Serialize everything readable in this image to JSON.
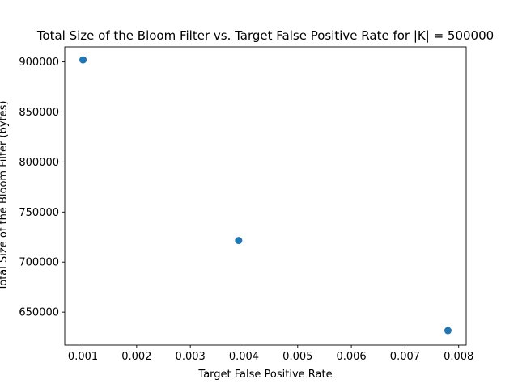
{
  "chart_data": {
    "type": "scatter",
    "title": "Total Size of the Bloom Filter vs. Target False Positive Rate for |K| = 500000",
    "xlabel": "Target False Positive Rate",
    "ylabel": "Total Size of the Bloom Filter (bytes)",
    "xlim": [
      0.00066,
      0.00814
    ],
    "ylim": [
      617000,
      915000
    ],
    "x_ticks": [
      0.001,
      0.002,
      0.003,
      0.004,
      0.005,
      0.006,
      0.007,
      0.008
    ],
    "x_tick_labels": [
      "0.001",
      "0.002",
      "0.003",
      "0.004",
      "0.005",
      "0.006",
      "0.007",
      "0.008"
    ],
    "y_ticks": [
      650000,
      700000,
      750000,
      800000,
      850000,
      900000
    ],
    "y_tick_labels": [
      "650000",
      "700000",
      "750000",
      "800000",
      "850000",
      "900000"
    ],
    "grid": false,
    "marker_color": "#1f77b4",
    "x": [
      0.001,
      0.0039,
      0.0078
    ],
    "y": [
      902000,
      721500,
      631500
    ]
  }
}
